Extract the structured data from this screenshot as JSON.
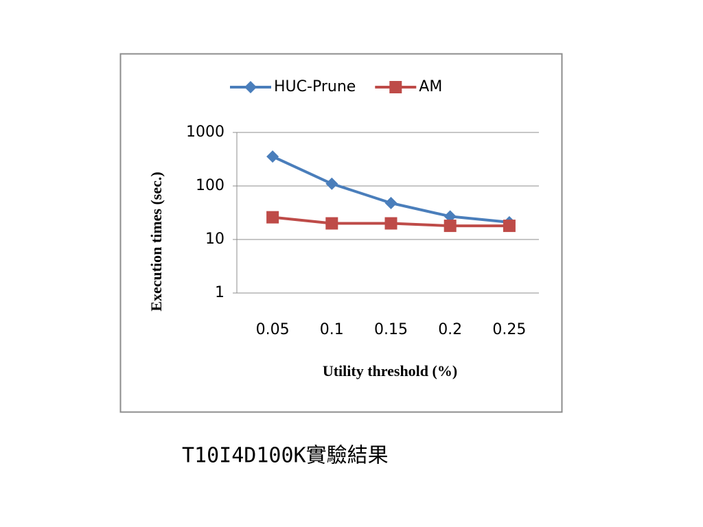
{
  "chart_data": {
    "type": "line",
    "x_label": "Utility threshold (%)",
    "y_label": "Execution times (sec.)",
    "categories": [
      "0.05",
      "0.1",
      "0.15",
      "0.2",
      "0.25"
    ],
    "series": [
      {
        "name": "HUC-Prune",
        "color": "#4a7ebb",
        "marker": "diamond",
        "values": [
          355,
          110,
          48,
          27,
          21
        ]
      },
      {
        "name": "AM",
        "color": "#be4b48",
        "marker": "square",
        "values": [
          26,
          20,
          20,
          18,
          18
        ]
      }
    ],
    "ylim": [
      1,
      1000
    ],
    "yticks": [
      1,
      10,
      100,
      1000
    ],
    "log_scale": true,
    "grid": true,
    "legend": "top"
  },
  "caption": "T10I4D100K實驗結果"
}
